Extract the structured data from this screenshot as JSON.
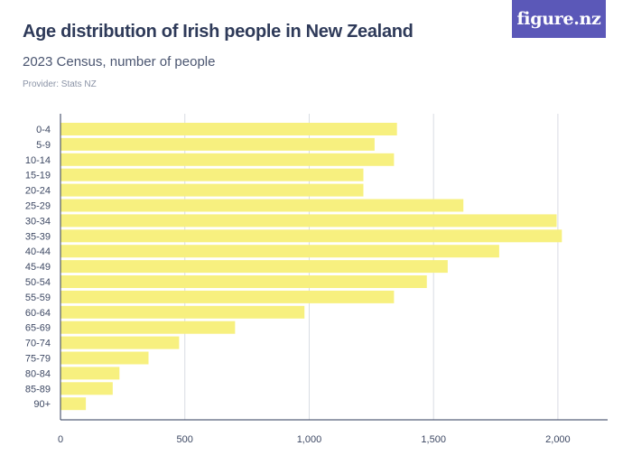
{
  "header": {
    "title": "Age distribution of Irish people in New Zealand",
    "subtitle": "2023 Census, number of people",
    "provider": "Provider: Stats NZ",
    "logo_text": "figure.nz"
  },
  "colors": {
    "bar": "#f7f07f",
    "grid": "#d9dce3",
    "axis": "#2e3a59",
    "logo_bg": "#5b58b8"
  },
  "chart_data": {
    "type": "bar",
    "orientation": "horizontal",
    "title": "Age distribution of Irish people in New Zealand",
    "subtitle": "2023 Census, number of people",
    "categories": [
      "0-4",
      "5-9",
      "10-14",
      "15-19",
      "20-24",
      "25-29",
      "30-34",
      "35-39",
      "40-44",
      "45-49",
      "50-54",
      "55-59",
      "60-64",
      "65-69",
      "70-74",
      "75-79",
      "80-84",
      "85-89",
      "90+"
    ],
    "values": [
      1353,
      1263,
      1341,
      1218,
      1218,
      1620,
      1995,
      2016,
      1764,
      1557,
      1473,
      1341,
      981,
      702,
      477,
      354,
      237,
      210,
      102
    ],
    "xlim": [
      0,
      2200
    ],
    "xticks": [
      0,
      500,
      1000,
      1500,
      2000
    ],
    "xtick_labels": [
      "0",
      "500",
      "1,000",
      "1,500",
      "2,000"
    ],
    "grid": true,
    "legend": "none"
  }
}
